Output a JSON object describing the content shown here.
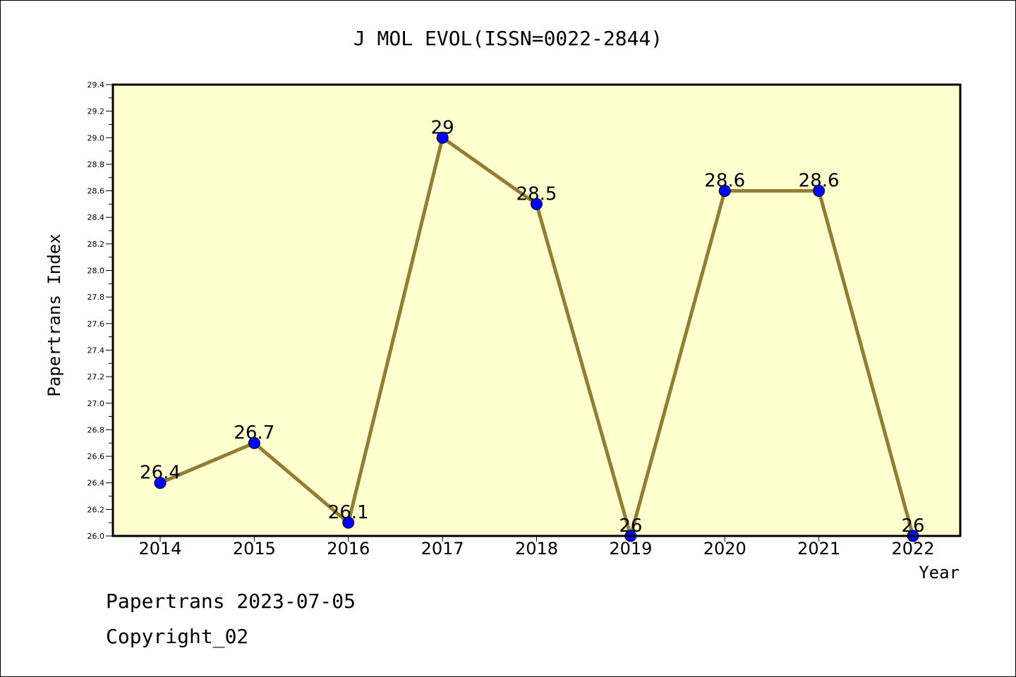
{
  "chart_data": {
    "type": "line",
    "title": "J MOL EVOL(ISSN=0022-2844)",
    "xlabel": "Year",
    "ylabel": "Papertrans Index",
    "x": [
      "2014",
      "2015",
      "2016",
      "2017",
      "2018",
      "2019",
      "2020",
      "2021",
      "2022"
    ],
    "series": [
      {
        "name": "Papertrans Index",
        "values": [
          26.4,
          26.7,
          26.1,
          29,
          28.5,
          26,
          28.6,
          28.6,
          26
        ]
      }
    ],
    "data_labels": [
      "26.4",
      "26.7",
      "26.1",
      "29",
      "28.5",
      "26",
      "28.6",
      "28.6",
      "26"
    ],
    "ylim": [
      26.0,
      29.4
    ],
    "yticks": [
      "26.0",
      "26.2",
      "26.4",
      "26.6",
      "26.8",
      "27.0",
      "27.2",
      "27.4",
      "27.6",
      "27.8",
      "28.0",
      "28.2",
      "28.4",
      "28.6",
      "28.8",
      "29.0",
      "29.2",
      "29.4"
    ],
    "grid": false,
    "colors": {
      "background": "#ffffd0",
      "line": "#917d34",
      "marker": "#0000ff"
    }
  },
  "footer": {
    "line1": "Papertrans 2023-07-05",
    "line2": "Copyright_02"
  }
}
